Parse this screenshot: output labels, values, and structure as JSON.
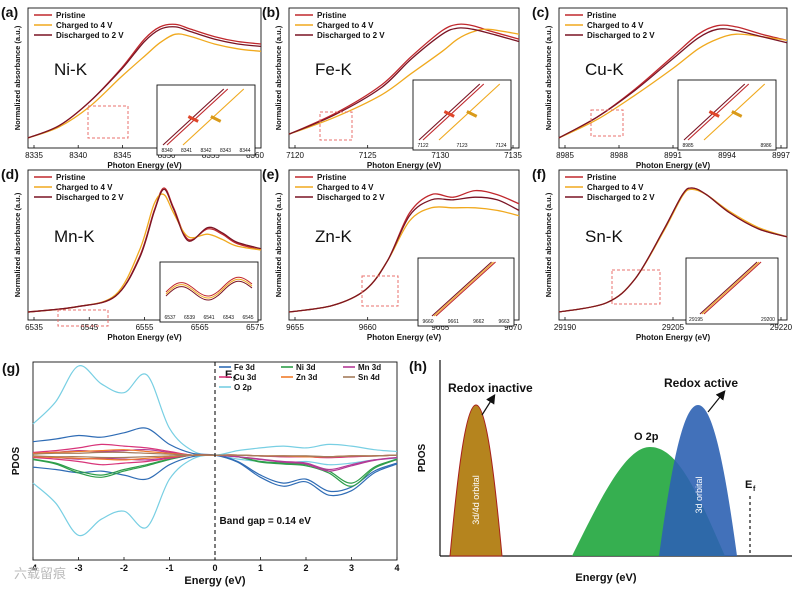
{
  "colors": {
    "pristine": "#c0282d",
    "charged": "#f0a91e",
    "discharged": "#7a1424",
    "zoom": "#e8706c",
    "fe": "#2f6cb5",
    "ni": "#2e9e4a",
    "mn": "#b43a96",
    "cu": "#d8357a",
    "zn": "#f07b2a",
    "sn": "#a47c5c",
    "o": "#78cfe3",
    "inactive": "#b5841e",
    "o2p": "#2bab47",
    "active": "#2e62b3"
  },
  "legend_labels": [
    "Pristine",
    "Charged to 4 V",
    "Discharged to 2 V"
  ],
  "panels": [
    {
      "tag": "(a)",
      "element": "Ni-K",
      "xlabel": "Photon Energy (eV)",
      "ylabel": "Normalized absorbance (a.u.)",
      "xticks": [
        "8335",
        "8340",
        "8345",
        "8350",
        "8355",
        "8360"
      ],
      "inset_ticks": [
        "8340",
        "8341",
        "8342",
        "8343",
        "8344"
      ]
    },
    {
      "tag": "(b)",
      "element": "Fe-K",
      "xlabel": "Photon Energy (eV)",
      "ylabel": "Normalized absorbance (a.u.)",
      "xticks": [
        "7120",
        "7125",
        "7130",
        "7135"
      ],
      "inset_ticks": [
        "7122",
        "7123",
        "7124"
      ]
    },
    {
      "tag": "(c)",
      "element": "Cu-K",
      "xlabel": "Photon Energy (eV)",
      "ylabel": "Normalized absorbance (a.u.)",
      "xticks": [
        "8985",
        "8988",
        "8991",
        "8994",
        "8997"
      ],
      "inset_ticks": [
        "8985",
        "8986"
      ]
    },
    {
      "tag": "(d)",
      "element": "Mn-K",
      "xlabel": "Photon Energy (eV)",
      "ylabel": "Normalized absorbance (a.u.)",
      "xticks": [
        "6535",
        "6545",
        "6555",
        "6565",
        "6575"
      ],
      "inset_ticks": [
        "6537",
        "6539",
        "6541",
        "6543",
        "6545"
      ]
    },
    {
      "tag": "(e)",
      "element": "Zn-K",
      "xlabel": "Photon Energy (eV)",
      "ylabel": "Normalized absorbance (a.u.)",
      "xticks": [
        "9655",
        "9660",
        "9665",
        "9670"
      ],
      "inset_ticks": [
        "9660",
        "9661",
        "9662",
        "9663"
      ]
    },
    {
      "tag": "(f)",
      "element": "Sn-K",
      "xlabel": "Photon Energy (eV)",
      "ylabel": "Normalized absorbance (a.u.)",
      "xticks": [
        "29190",
        "29205",
        "29220"
      ],
      "inset_ticks": [
        "29195",
        "29200"
      ]
    }
  ],
  "panel_g": {
    "tag": "(g)",
    "ylabel": "PDOS",
    "xlabel": "Energy (eV)",
    "xticks": [
      "-4",
      "-3",
      "-2",
      "-1",
      "0",
      "1",
      "2",
      "3",
      "4"
    ],
    "fermi_label": "E",
    "fermi_sub": "f",
    "band_gap": "Band gap = 0.14 eV",
    "legend": [
      "Fe 3d",
      "Ni 3d",
      "Mn 3d",
      "Cu 3d",
      "Zn 3d",
      "Sn 4d",
      "O 2p"
    ]
  },
  "panel_h": {
    "tag": "(h)",
    "ylabel": "PDOS",
    "xlabel": "Energy (eV)",
    "redox_inactive": "Redox inactive",
    "redox_active": "Redox active",
    "o2p": "O 2p",
    "orbital_left": "3d/4d orbital",
    "orbital_right": "3d orbital",
    "fermi_label": "E",
    "fermi_sub": "f"
  },
  "watermark": "六载留痕",
  "chart_data": [
    {
      "type": "line",
      "panel": "(a)",
      "title": "Ni-K",
      "xlabel": "Photon Energy (eV)",
      "ylabel": "Normalized absorbance (a.u.)",
      "xlim": [
        8332,
        8362
      ],
      "x": [
        8332,
        8336,
        8340,
        8344,
        8347,
        8349,
        8351,
        8353,
        8356,
        8359,
        8362
      ],
      "series": [
        {
          "name": "Pristine",
          "values": [
            0.05,
            0.15,
            0.35,
            0.62,
            0.86,
            0.96,
            0.98,
            0.94,
            0.88,
            0.84,
            0.82
          ]
        },
        {
          "name": "Charged to 4 V",
          "values": [
            0.05,
            0.14,
            0.31,
            0.55,
            0.72,
            0.83,
            0.9,
            0.88,
            0.82,
            0.78,
            0.76
          ]
        },
        {
          "name": "Discharged to 2 V",
          "values": [
            0.05,
            0.15,
            0.35,
            0.61,
            0.84,
            0.94,
            0.96,
            0.92,
            0.86,
            0.82,
            0.8
          ]
        }
      ]
    },
    {
      "type": "line",
      "panel": "(b)",
      "title": "Fe-K",
      "xlabel": "Photon Energy (eV)",
      "ylabel": "Normalized absorbance (a.u.)",
      "xlim": [
        7120,
        7135
      ],
      "x": [
        7120,
        7123,
        7126,
        7128,
        7130,
        7131,
        7132,
        7133,
        7135
      ],
      "series": [
        {
          "name": "Pristine",
          "values": [
            0.08,
            0.25,
            0.48,
            0.72,
            0.93,
            0.98,
            0.97,
            0.93,
            0.86
          ]
        },
        {
          "name": "Charged to 4 V",
          "values": [
            0.08,
            0.22,
            0.4,
            0.58,
            0.76,
            0.86,
            0.92,
            0.94,
            0.9
          ]
        },
        {
          "name": "Discharged to 2 V",
          "values": [
            0.08,
            0.24,
            0.46,
            0.7,
            0.9,
            0.95,
            0.94,
            0.91,
            0.84
          ]
        }
      ]
    },
    {
      "type": "line",
      "panel": "(c)",
      "title": "Cu-K",
      "xlabel": "Photon Energy (eV)",
      "ylabel": "Normalized absorbance (a.u.)",
      "xlim": [
        8982,
        9000
      ],
      "x": [
        8982,
        8985,
        8988,
        8991,
        8993,
        8994.5,
        8996,
        8998,
        9000
      ],
      "series": [
        {
          "name": "Pristine",
          "values": [
            0.05,
            0.22,
            0.45,
            0.72,
            0.9,
            0.97,
            0.96,
            0.9,
            0.85
          ]
        },
        {
          "name": "Charged to 4 V",
          "values": [
            0.05,
            0.2,
            0.4,
            0.62,
            0.78,
            0.86,
            0.9,
            0.88,
            0.85
          ]
        },
        {
          "name": "Discharged to 2 V",
          "values": [
            0.05,
            0.22,
            0.44,
            0.7,
            0.87,
            0.94,
            0.93,
            0.88,
            0.83
          ]
        }
      ]
    },
    {
      "type": "line",
      "panel": "(d)",
      "title": "Mn-K",
      "xlabel": "Photon Energy (eV)",
      "ylabel": "Normalized absorbance (a.u.)",
      "xlim": [
        6530,
        6578
      ],
      "x": [
        6530,
        6540,
        6548,
        6553,
        6556,
        6558,
        6560,
        6563,
        6567,
        6570,
        6573,
        6578
      ],
      "series": [
        {
          "name": "Pristine",
          "values": [
            0.03,
            0.07,
            0.15,
            0.45,
            0.8,
            0.97,
            0.82,
            0.58,
            0.66,
            0.62,
            0.55,
            0.5
          ]
        },
        {
          "name": "Charged to 4 V",
          "values": [
            0.03,
            0.07,
            0.16,
            0.5,
            0.85,
            0.92,
            0.78,
            0.6,
            0.62,
            0.58,
            0.53,
            0.5
          ]
        },
        {
          "name": "Discharged to 2 V",
          "values": [
            0.03,
            0.07,
            0.15,
            0.44,
            0.79,
            0.96,
            0.81,
            0.57,
            0.67,
            0.63,
            0.56,
            0.51
          ]
        }
      ]
    },
    {
      "type": "line",
      "panel": "(e)",
      "title": "Zn-K",
      "xlabel": "Photon Energy (eV)",
      "ylabel": "Normalized absorbance (a.u.)",
      "xlim": [
        9653,
        9674
      ],
      "x": [
        9653,
        9657,
        9660,
        9662,
        9664,
        9666,
        9668,
        9670,
        9672,
        9674
      ],
      "series": [
        {
          "name": "Pristine",
          "values": [
            0.03,
            0.08,
            0.2,
            0.42,
            0.78,
            0.92,
            0.9,
            0.95,
            0.92,
            0.85
          ]
        },
        {
          "name": "Charged to 4 V",
          "values": [
            0.03,
            0.08,
            0.2,
            0.42,
            0.72,
            0.82,
            0.82,
            0.82,
            0.8,
            0.76
          ]
        },
        {
          "name": "Discharged to 2 V",
          "values": [
            0.03,
            0.08,
            0.2,
            0.42,
            0.76,
            0.88,
            0.88,
            0.9,
            0.88,
            0.8
          ]
        }
      ]
    },
    {
      "type": "line",
      "panel": "(f)",
      "title": "Sn-K",
      "xlabel": "Photon Energy (eV)",
      "ylabel": "Normalized absorbance (a.u.)",
      "xlim": [
        29180,
        29228
      ],
      "x": [
        29180,
        29190,
        29196,
        29202,
        29206,
        29208,
        29211,
        29216,
        29222,
        29228
      ],
      "series": [
        {
          "name": "Pristine",
          "values": [
            0.03,
            0.1,
            0.28,
            0.65,
            0.92,
            0.97,
            0.92,
            0.78,
            0.66,
            0.6
          ]
        },
        {
          "name": "Charged to 4 V",
          "values": [
            0.03,
            0.1,
            0.28,
            0.64,
            0.91,
            0.96,
            0.92,
            0.79,
            0.67,
            0.6
          ]
        },
        {
          "name": "Discharged to 2 V",
          "values": [
            0.03,
            0.1,
            0.28,
            0.65,
            0.92,
            0.97,
            0.92,
            0.78,
            0.66,
            0.6
          ]
        }
      ]
    },
    {
      "type": "line",
      "panel": "(g)",
      "xlabel": "Energy (eV)",
      "ylabel": "PDOS",
      "xlim": [
        -4,
        4
      ],
      "x": [
        -4,
        -3.5,
        -3,
        -2.5,
        -2,
        -1.5,
        -1,
        -0.5,
        0,
        0.5,
        1,
        1.5,
        2,
        2.5,
        3,
        3.5,
        4
      ],
      "series": [
        {
          "name": "O 2p",
          "values": [
            0.35,
            0.6,
            1.0,
            0.8,
            0.7,
            0.9,
            0.3,
            0.05,
            0,
            0.05,
            0.08,
            0.1,
            0.08,
            0.12,
            0.1,
            0.06,
            0.04
          ]
        },
        {
          "name": "Fe 3d",
          "values": [
            0.15,
            0.18,
            0.22,
            0.2,
            0.25,
            0.3,
            0.12,
            0.02,
            0,
            -0.08,
            -0.25,
            -0.35,
            -0.3,
            -0.45,
            -0.4,
            -0.2,
            -0.1
          ]
        },
        {
          "name": "Ni 3d",
          "values": [
            -0.05,
            -0.1,
            -0.2,
            -0.25,
            -0.18,
            -0.12,
            -0.05,
            0,
            0,
            -0.02,
            -0.08,
            -0.1,
            -0.12,
            -0.2,
            -0.35,
            -0.15,
            -0.05
          ]
        },
        {
          "name": "Mn 3d",
          "values": [
            0.02,
            0.03,
            0.05,
            0.04,
            0.05,
            0.06,
            0.03,
            0,
            0,
            -0.02,
            -0.05,
            -0.08,
            -0.1,
            -0.18,
            -0.12,
            -0.06,
            -0.03
          ]
        },
        {
          "name": "Cu 3d",
          "values": [
            0.03,
            0.05,
            0.08,
            0.12,
            0.1,
            0.08,
            0.04,
            0,
            0,
            0,
            -0.01,
            -0.02,
            -0.02,
            -0.03,
            -0.02,
            -0.01,
            0
          ]
        },
        {
          "name": "Zn 3d",
          "values": [
            0.02,
            0.03,
            0.04,
            0.05,
            0.06,
            0.04,
            0.02,
            0,
            0,
            0,
            -0.01,
            -0.01,
            -0.02,
            -0.02,
            -0.01,
            -0.01,
            0
          ]
        },
        {
          "name": "Sn 4d",
          "values": [
            0.01,
            0.02,
            0.02,
            0.03,
            0.03,
            0.02,
            0.01,
            0,
            0,
            0,
            -0.01,
            -0.01,
            -0.01,
            -0.02,
            -0.01,
            -0.01,
            0
          ]
        }
      ]
    }
  ]
}
